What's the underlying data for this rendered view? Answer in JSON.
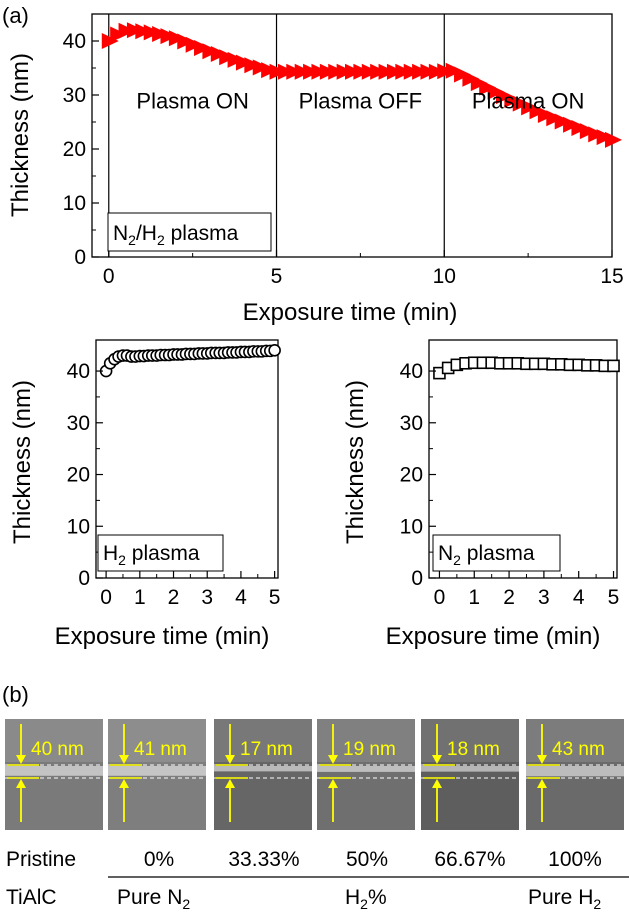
{
  "panel_labels": {
    "a": "(a)",
    "b": "(b)"
  },
  "chart_data": [
    {
      "id": "top",
      "type": "scatter",
      "marker": "triangle-right",
      "color": "#ff0000",
      "xlabel": "Exposure time (min)",
      "ylabel": "Thickness (nm)",
      "xlim": [
        -0.5,
        15
      ],
      "ylim": [
        0,
        45
      ],
      "xticks": [
        0,
        5,
        10,
        15
      ],
      "yticks": [
        0,
        10,
        20,
        30,
        40
      ],
      "dividers": [
        0,
        5,
        10
      ],
      "regions": [
        {
          "x": 2.5,
          "label": "Plasma ON"
        },
        {
          "x": 7.5,
          "label": "Plasma OFF"
        },
        {
          "x": 12.5,
          "label": "Plasma ON"
        }
      ],
      "legend": {
        "parts": [
          "N",
          "2",
          "/H",
          "2",
          " plasma"
        ]
      },
      "x": [
        0,
        0.25,
        0.5,
        0.75,
        1,
        1.25,
        1.5,
        1.75,
        2,
        2.25,
        2.5,
        2.75,
        3,
        3.25,
        3.5,
        3.75,
        4,
        4.25,
        4.5,
        4.75,
        5,
        5.25,
        5.5,
        5.75,
        6,
        6.25,
        6.5,
        6.75,
        7,
        7.25,
        7.5,
        7.75,
        8,
        8.25,
        8.5,
        8.75,
        9,
        9.25,
        9.5,
        9.75,
        10,
        10.25,
        10.5,
        10.75,
        11,
        11.25,
        11.5,
        11.75,
        12,
        12.25,
        12.5,
        12.75,
        13,
        13.25,
        13.5,
        13.75,
        14,
        14.25,
        14.5,
        14.75,
        15
      ],
      "y": [
        40,
        41.2,
        41.9,
        42,
        41.8,
        41.6,
        41.3,
        40.9,
        40.5,
        39.9,
        39.3,
        38.7,
        38.1,
        37.6,
        37,
        36.5,
        36,
        35.5,
        35.1,
        34.6,
        34.3,
        34.3,
        34.3,
        34.3,
        34.3,
        34.3,
        34.3,
        34.3,
        34.3,
        34.3,
        34.3,
        34.3,
        34.3,
        34.3,
        34.3,
        34.3,
        34.3,
        34.3,
        34.3,
        34.3,
        34.4,
        34.5,
        33.8,
        33,
        32.2,
        31.4,
        30.6,
        29.8,
        29.1,
        28.4,
        27.7,
        27,
        26.3,
        25.7,
        25.1,
        24.5,
        23.9,
        23.3,
        22.7,
        22.2,
        21.7
      ]
    },
    {
      "id": "h2",
      "type": "scatter",
      "marker": "circle-open",
      "color": "#000000",
      "xlabel": "Exposure time (min)",
      "ylabel": "Thickness (nm)",
      "xlim": [
        -0.3,
        5.1
      ],
      "ylim": [
        0,
        46
      ],
      "xticks": [
        0,
        1,
        2,
        3,
        4,
        5
      ],
      "yticks": [
        0,
        10,
        20,
        30,
        40
      ],
      "legend": {
        "parts": [
          "H",
          "2",
          " plasma"
        ]
      },
      "x": [
        0,
        0.12,
        0.25,
        0.37,
        0.5,
        0.62,
        0.75,
        0.87,
        1,
        1.12,
        1.25,
        1.37,
        1.5,
        1.62,
        1.75,
        1.87,
        2,
        2.12,
        2.25,
        2.37,
        2.5,
        2.62,
        2.75,
        2.87,
        3,
        3.12,
        3.25,
        3.37,
        3.5,
        3.62,
        3.75,
        3.87,
        4,
        4.12,
        4.25,
        4.37,
        4.5,
        4.62,
        4.75,
        4.87,
        5
      ],
      "y": [
        40,
        41.5,
        42.3,
        42.8,
        43,
        43,
        42.8,
        42.8,
        42.9,
        42.9,
        43,
        43,
        43,
        43.1,
        43.1,
        43.1,
        43.2,
        43.2,
        43.2,
        43.3,
        43.3,
        43.3,
        43.4,
        43.4,
        43.4,
        43.5,
        43.5,
        43.5,
        43.5,
        43.6,
        43.6,
        43.6,
        43.7,
        43.7,
        43.7,
        43.8,
        43.8,
        43.8,
        43.9,
        43.9,
        44
      ]
    },
    {
      "id": "n2",
      "type": "scatter",
      "marker": "square-open",
      "color": "#000000",
      "xlabel": "Exposure time (min)",
      "ylabel": "Thickness (nm)",
      "xlim": [
        -0.3,
        5.1
      ],
      "ylim": [
        0,
        46
      ],
      "xticks": [
        0,
        1,
        2,
        3,
        4,
        5
      ],
      "yticks": [
        0,
        10,
        20,
        30,
        40
      ],
      "legend": {
        "parts": [
          "N",
          "2",
          " plasma"
        ]
      },
      "x": [
        0,
        0.25,
        0.5,
        0.75,
        1,
        1.25,
        1.5,
        1.75,
        2,
        2.25,
        2.5,
        2.75,
        3,
        3.25,
        3.5,
        3.75,
        4,
        4.25,
        4.5,
        4.75,
        5
      ],
      "y": [
        39.6,
        40.6,
        41.2,
        41.5,
        41.6,
        41.6,
        41.6,
        41.5,
        41.5,
        41.5,
        41.4,
        41.4,
        41.4,
        41.3,
        41.3,
        41.2,
        41.2,
        41.1,
        41.1,
        41,
        41
      ]
    }
  ],
  "sem": {
    "thickness_labels": [
      "40 nm",
      "41 nm",
      "17 nm",
      "19 nm",
      "18 nm",
      "43 nm"
    ],
    "tile_shades": [
      "#7a7a7a",
      "#7e7e7e",
      "#666666",
      "#6f6f6f",
      "#5e5e5e",
      "#6a6a6a"
    ],
    "band_fraction": [
      0.6,
      0.6,
      0.26,
      0.3,
      0.28,
      0.64
    ],
    "row_labels": [
      "Pristine",
      "0%",
      "33.33%",
      "50%",
      "66.67%",
      "100%"
    ],
    "bottom": {
      "left": "TiAlC",
      "pure_n2": [
        "Pure N",
        "2"
      ],
      "h2pct": [
        "H",
        "2",
        "%"
      ],
      "pure_h2": [
        "Pure H",
        "2"
      ]
    },
    "annotation_color": "#ffff00"
  }
}
